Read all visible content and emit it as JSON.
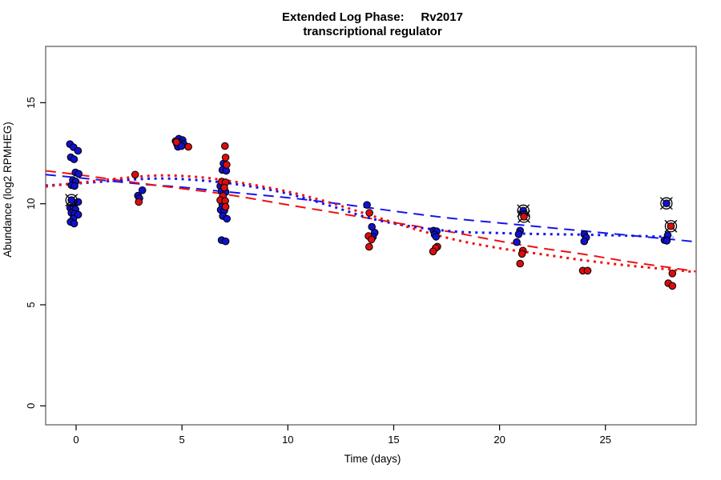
{
  "chart_data": {
    "type": "scatter",
    "title_line1": "Extended Log Phase:     Rv2017",
    "title_line2": "transcriptional regulator",
    "xlabel": "Time  (days)",
    "ylabel": "Abundance  (log2 RPMHEG)",
    "x_ticks": [
      0,
      5,
      10,
      15,
      20,
      25
    ],
    "y_ticks": [
      0,
      5,
      10,
      15
    ],
    "xlim": [
      -1.44,
      29.25
    ],
    "ylim": [
      -0.5,
      17.8
    ],
    "grid": false,
    "legend": "none",
    "colors": {
      "blue_point": "#1111cd",
      "red_point": "#dc0d0d",
      "blue_line": "#1515ee",
      "red_line": "#ee1111",
      "point_stroke": "#000000",
      "box": "#555555"
    },
    "series": [
      {
        "name": "blue-samples",
        "color": "#1111cd",
        "points": [
          [
            -0.29,
            12.95
          ],
          [
            -0.12,
            12.8
          ],
          [
            0.09,
            12.62
          ],
          [
            -0.25,
            12.3
          ],
          [
            -0.1,
            12.2
          ],
          [
            -0.03,
            11.55
          ],
          [
            0.12,
            11.48
          ],
          [
            -0.15,
            11.17
          ],
          [
            -0.02,
            11.1
          ],
          [
            -0.22,
            10.92
          ],
          [
            -0.07,
            10.88
          ],
          [
            0.1,
            10.09
          ],
          [
            -0.28,
            9.8
          ],
          [
            -0.13,
            9.82
          ],
          [
            -0.03,
            9.72
          ],
          [
            -0.22,
            9.55
          ],
          [
            -0.07,
            9.5
          ],
          [
            0.1,
            9.46
          ],
          [
            -0.13,
            9.26
          ],
          [
            -0.26,
            9.1
          ],
          [
            -0.09,
            9.02
          ],
          [
            3.13,
            10.67
          ],
          [
            2.92,
            10.4
          ],
          [
            2.99,
            10.27
          ],
          [
            4.7,
            13.1
          ],
          [
            4.85,
            13.22
          ],
          [
            5.03,
            13.15
          ],
          [
            4.76,
            12.97
          ],
          [
            4.92,
            13.02
          ],
          [
            5.08,
            12.95
          ],
          [
            4.81,
            12.82
          ],
          [
            4.97,
            12.85
          ],
          [
            6.96,
            11.99
          ],
          [
            6.91,
            11.67
          ],
          [
            7.09,
            11.63
          ],
          [
            6.81,
            10.88
          ],
          [
            6.87,
            10.62
          ],
          [
            7.06,
            10.58
          ],
          [
            6.91,
            9.96
          ],
          [
            6.83,
            9.7
          ],
          [
            7.0,
            9.66
          ],
          [
            6.93,
            9.39
          ],
          [
            7.12,
            9.26
          ],
          [
            6.87,
            8.2
          ],
          [
            7.06,
            8.14
          ],
          [
            13.74,
            9.94
          ],
          [
            13.97,
            8.86
          ],
          [
            14.1,
            8.57
          ],
          [
            14.02,
            8.36
          ],
          [
            16.88,
            8.67
          ],
          [
            17.03,
            8.64
          ],
          [
            16.93,
            8.47
          ],
          [
            17.0,
            8.37
          ],
          [
            20.97,
            8.67
          ],
          [
            20.9,
            8.49
          ],
          [
            20.81,
            8.1
          ],
          [
            24.0,
            8.49
          ],
          [
            24.09,
            8.33
          ],
          [
            24.0,
            8.14
          ],
          [
            27.94,
            8.44
          ],
          [
            27.79,
            8.2
          ],
          [
            27.9,
            8.17
          ]
        ],
        "outliers": [
          [
            -0.22,
            10.18
          ],
          [
            21.12,
            9.66
          ],
          [
            27.88,
            10.02
          ]
        ]
      },
      {
        "name": "red-samples",
        "color": "#dc0d0d",
        "points": [
          [
            2.79,
            11.44
          ],
          [
            2.96,
            10.09
          ],
          [
            4.74,
            13.05
          ],
          [
            5.3,
            12.82
          ],
          [
            7.03,
            12.86
          ],
          [
            7.06,
            12.29
          ],
          [
            7.11,
            11.93
          ],
          [
            6.88,
            11.1
          ],
          [
            7.06,
            11.06
          ],
          [
            7.0,
            10.8
          ],
          [
            6.93,
            10.38
          ],
          [
            6.81,
            10.18
          ],
          [
            7.04,
            10.14
          ],
          [
            7.06,
            9.85
          ],
          [
            13.85,
            9.55
          ],
          [
            13.81,
            8.4
          ],
          [
            13.95,
            8.23
          ],
          [
            13.84,
            7.87
          ],
          [
            17.06,
            7.88
          ],
          [
            16.98,
            7.81
          ],
          [
            16.86,
            7.64
          ],
          [
            21.1,
            7.68
          ],
          [
            21.06,
            7.52
          ],
          [
            20.97,
            7.04
          ],
          [
            23.93,
            6.69
          ],
          [
            24.16,
            6.69
          ],
          [
            28.16,
            6.55
          ],
          [
            27.97,
            6.07
          ],
          [
            28.16,
            5.94
          ]
        ],
        "outliers": [
          [
            21.15,
            9.36
          ],
          [
            28.09,
            8.89
          ]
        ]
      }
    ],
    "curves": [
      {
        "name": "blue-dashed-fit",
        "color": "#1515ee",
        "style": "dashed",
        "points": [
          [
            -1.44,
            11.44
          ],
          [
            0,
            11.3
          ],
          [
            3,
            10.98
          ],
          [
            5,
            10.82
          ],
          [
            7,
            10.6
          ],
          [
            10,
            10.3
          ],
          [
            12,
            10.05
          ],
          [
            14,
            9.78
          ],
          [
            16,
            9.5
          ],
          [
            18,
            9.25
          ],
          [
            20,
            9.05
          ],
          [
            22,
            8.85
          ],
          [
            24,
            8.65
          ],
          [
            26,
            8.45
          ],
          [
            28,
            8.25
          ],
          [
            29.25,
            8.12
          ]
        ]
      },
      {
        "name": "red-dashed-fit",
        "color": "#ee1111",
        "style": "dashed",
        "points": [
          [
            -1.44,
            11.63
          ],
          [
            0,
            11.45
          ],
          [
            3,
            11.02
          ],
          [
            5,
            10.75
          ],
          [
            7,
            10.48
          ],
          [
            10,
            9.95
          ],
          [
            12,
            9.6
          ],
          [
            14,
            9.25
          ],
          [
            16,
            8.9
          ],
          [
            18,
            8.55
          ],
          [
            20,
            8.15
          ],
          [
            22,
            7.8
          ],
          [
            24,
            7.5
          ],
          [
            26,
            7.15
          ],
          [
            28,
            6.85
          ],
          [
            29.25,
            6.65
          ]
        ]
      },
      {
        "name": "blue-dotted-fit",
        "color": "#1515ee",
        "style": "dotted",
        "points": [
          [
            -1.44,
            10.9
          ],
          [
            0,
            11.0
          ],
          [
            2,
            11.15
          ],
          [
            4,
            11.25
          ],
          [
            6,
            11.15
          ],
          [
            8,
            10.9
          ],
          [
            10,
            10.5
          ],
          [
            12,
            9.9
          ],
          [
            14,
            9.25
          ],
          [
            16,
            8.85
          ],
          [
            18,
            8.62
          ],
          [
            20,
            8.55
          ],
          [
            22,
            8.5
          ],
          [
            24,
            8.47
          ],
          [
            26,
            8.42
          ],
          [
            28.2,
            8.35
          ]
        ]
      },
      {
        "name": "red-dotted-fit",
        "color": "#ee1111",
        "style": "dotted",
        "points": [
          [
            -1.44,
            10.85
          ],
          [
            0,
            11.02
          ],
          [
            2,
            11.25
          ],
          [
            4,
            11.4
          ],
          [
            6,
            11.3
          ],
          [
            8,
            11.0
          ],
          [
            10,
            10.6
          ],
          [
            12,
            10.05
          ],
          [
            14,
            9.4
          ],
          [
            16,
            8.75
          ],
          [
            18,
            8.2
          ],
          [
            20,
            7.8
          ],
          [
            22,
            7.5
          ],
          [
            24,
            7.2
          ],
          [
            26,
            6.95
          ],
          [
            28,
            6.75
          ],
          [
            29.25,
            6.62
          ]
        ]
      }
    ]
  }
}
